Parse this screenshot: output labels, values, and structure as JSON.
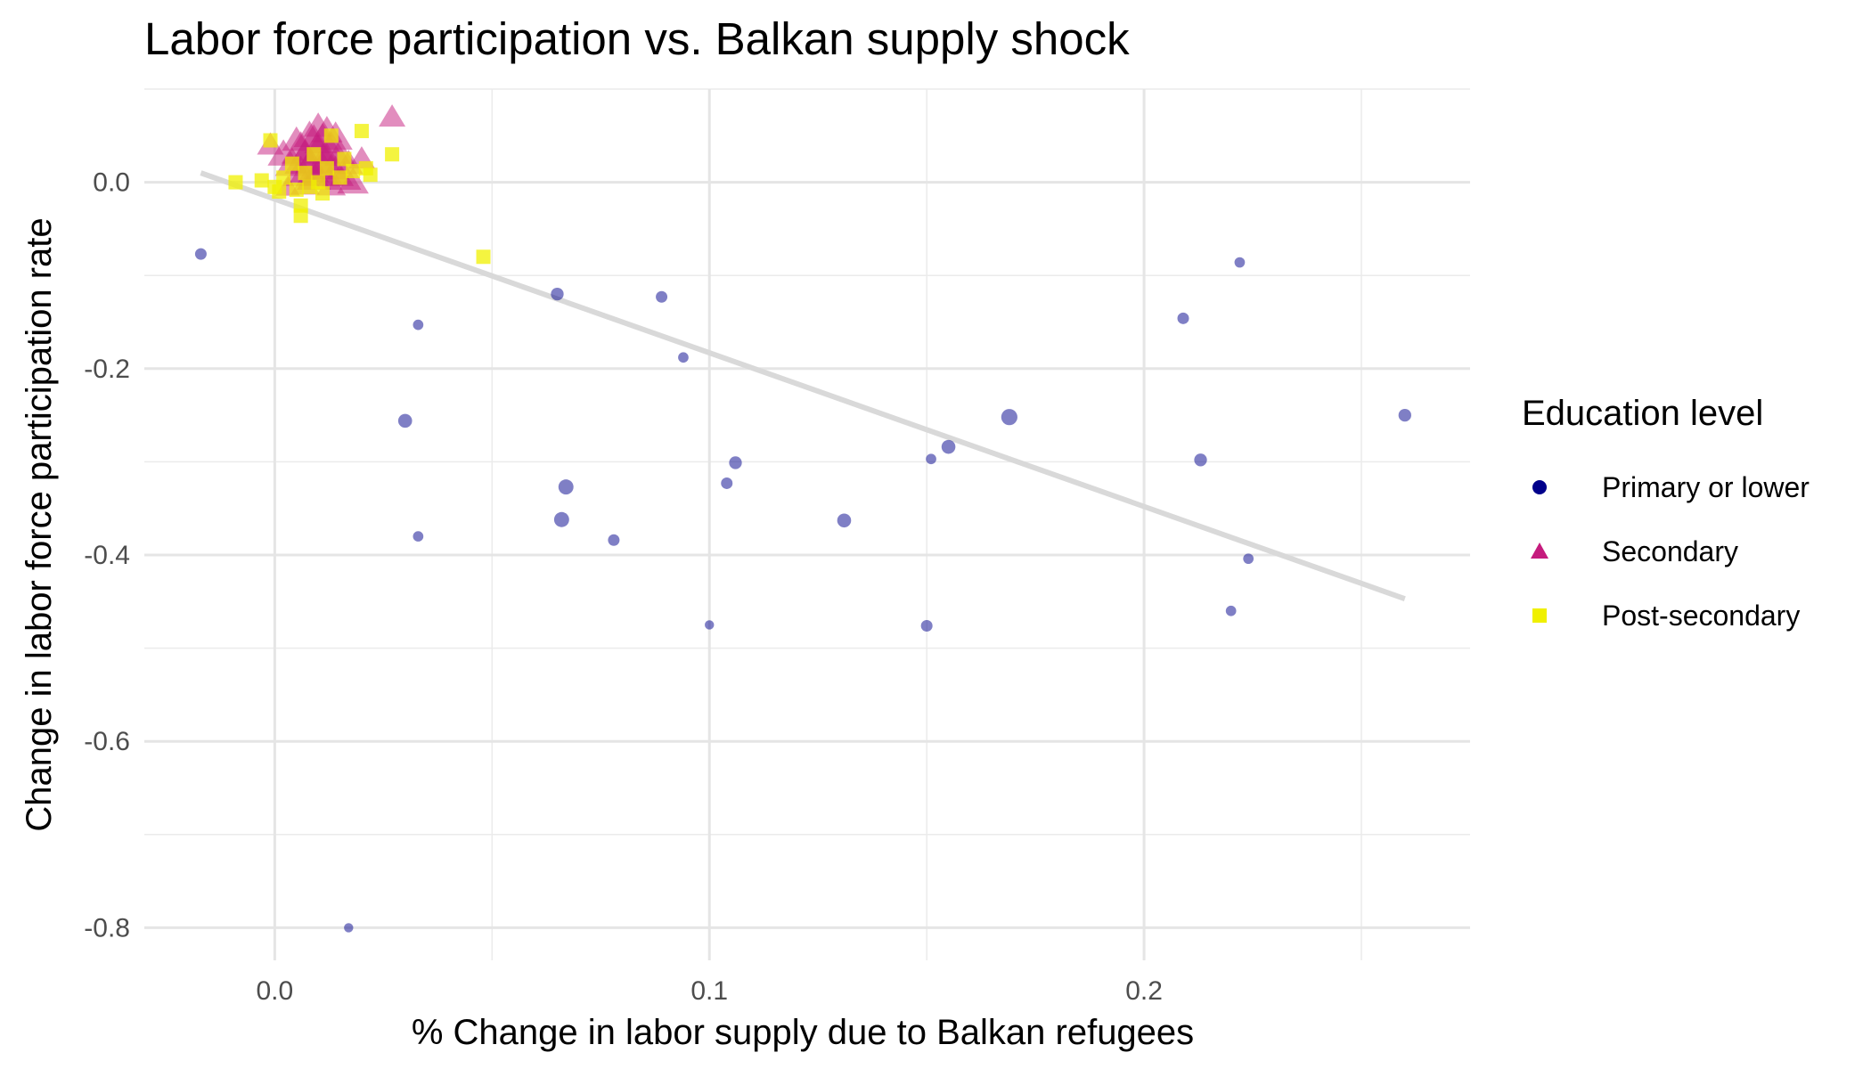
{
  "chart_data": {
    "type": "scatter",
    "title": "Labor force participation vs. Balkan supply shock",
    "xlabel": "% Change in labor supply due to Balkan refugees",
    "ylabel": "Change in labor force participation rate",
    "xlim": [
      -0.03,
      0.275
    ],
    "ylim": [
      -0.835,
      0.1
    ],
    "x_ticks": [
      0.0,
      0.1,
      0.2
    ],
    "x_tick_labels": [
      "0.0",
      "0.1",
      "0.2"
    ],
    "y_ticks": [
      0.0,
      -0.2,
      -0.4,
      -0.6,
      -0.8
    ],
    "y_tick_labels": [
      "0.0",
      "-0.2",
      "-0.4",
      "-0.6",
      "-0.8"
    ],
    "grid": true,
    "legend_title": "Education level",
    "legend_position": "right",
    "series": [
      {
        "name": "Primary or lower",
        "marker": "circle",
        "color": "#00008b",
        "points": [
          {
            "x": -0.017,
            "y": -0.077,
            "s": 1.0
          },
          {
            "x": 0.017,
            "y": -0.8,
            "s": 0.8
          },
          {
            "x": 0.03,
            "y": -0.256,
            "s": 1.2
          },
          {
            "x": 0.033,
            "y": -0.153,
            "s": 0.9
          },
          {
            "x": 0.033,
            "y": -0.38,
            "s": 0.9
          },
          {
            "x": 0.065,
            "y": -0.12,
            "s": 1.1
          },
          {
            "x": 0.066,
            "y": -0.362,
            "s": 1.3
          },
          {
            "x": 0.067,
            "y": -0.327,
            "s": 1.3
          },
          {
            "x": 0.078,
            "y": -0.384,
            "s": 1.0
          },
          {
            "x": 0.089,
            "y": -0.123,
            "s": 1.0
          },
          {
            "x": 0.094,
            "y": -0.188,
            "s": 0.9
          },
          {
            "x": 0.1,
            "y": -0.475,
            "s": 0.8
          },
          {
            "x": 0.104,
            "y": -0.323,
            "s": 1.0
          },
          {
            "x": 0.106,
            "y": -0.301,
            "s": 1.1
          },
          {
            "x": 0.131,
            "y": -0.363,
            "s": 1.2
          },
          {
            "x": 0.15,
            "y": -0.476,
            "s": 1.0
          },
          {
            "x": 0.151,
            "y": -0.297,
            "s": 0.9
          },
          {
            "x": 0.155,
            "y": -0.284,
            "s": 1.2
          },
          {
            "x": 0.169,
            "y": -0.252,
            "s": 1.4
          },
          {
            "x": 0.209,
            "y": -0.146,
            "s": 1.0
          },
          {
            "x": 0.213,
            "y": -0.298,
            "s": 1.1
          },
          {
            "x": 0.22,
            "y": -0.46,
            "s": 0.9
          },
          {
            "x": 0.222,
            "y": -0.086,
            "s": 0.9
          },
          {
            "x": 0.224,
            "y": -0.404,
            "s": 0.9
          },
          {
            "x": 0.26,
            "y": -0.25,
            "s": 1.1
          }
        ]
      },
      {
        "name": "Secondary",
        "marker": "triangle",
        "color": "#c51b7d",
        "points": [
          {
            "x": -0.001,
            "y": 0.04,
            "s": 1.1
          },
          {
            "x": 0.002,
            "y": 0.03,
            "s": 1.3
          },
          {
            "x": 0.003,
            "y": -0.005,
            "s": 1.0
          },
          {
            "x": 0.004,
            "y": 0.02,
            "s": 1.4
          },
          {
            "x": 0.005,
            "y": 0.045,
            "s": 1.2
          },
          {
            "x": 0.006,
            "y": 0.01,
            "s": 1.5
          },
          {
            "x": 0.006,
            "y": 0.035,
            "s": 1.6
          },
          {
            "x": 0.007,
            "y": -0.002,
            "s": 1.2
          },
          {
            "x": 0.007,
            "y": 0.025,
            "s": 1.7
          },
          {
            "x": 0.008,
            "y": 0.05,
            "s": 1.3
          },
          {
            "x": 0.008,
            "y": 0.015,
            "s": 1.6
          },
          {
            "x": 0.009,
            "y": 0.04,
            "s": 1.8
          },
          {
            "x": 0.009,
            "y": 0.005,
            "s": 1.4
          },
          {
            "x": 0.01,
            "y": 0.06,
            "s": 1.2
          },
          {
            "x": 0.01,
            "y": 0.028,
            "s": 1.9
          },
          {
            "x": 0.011,
            "y": 0.045,
            "s": 1.5
          },
          {
            "x": 0.011,
            "y": 0.012,
            "s": 1.7
          },
          {
            "x": 0.012,
            "y": 0.055,
            "s": 1.3
          },
          {
            "x": 0.012,
            "y": 0.02,
            "s": 1.8
          },
          {
            "x": 0.013,
            "y": 0.035,
            "s": 1.6
          },
          {
            "x": 0.013,
            "y": -0.003,
            "s": 1.2
          },
          {
            "x": 0.014,
            "y": 0.048,
            "s": 1.4
          },
          {
            "x": 0.014,
            "y": 0.01,
            "s": 1.5
          },
          {
            "x": 0.015,
            "y": 0.03,
            "s": 1.3
          },
          {
            "x": 0.016,
            "y": 0.005,
            "s": 1.4
          },
          {
            "x": 0.017,
            "y": 0.02,
            "s": 1.2
          },
          {
            "x": 0.018,
            "y": 0.0,
            "s": 1.3
          },
          {
            "x": 0.02,
            "y": 0.025,
            "s": 1.1
          },
          {
            "x": 0.027,
            "y": 0.07,
            "s": 1.1
          }
        ]
      },
      {
        "name": "Post-secondary",
        "marker": "square",
        "color": "#f0f000",
        "points": [
          {
            "x": -0.009,
            "y": 0.0,
            "s": 1.0
          },
          {
            "x": -0.003,
            "y": 0.002,
            "s": 1.0
          },
          {
            "x": -0.001,
            "y": 0.045,
            "s": 1.0
          },
          {
            "x": 0.0,
            "y": -0.005,
            "s": 1.0
          },
          {
            "x": 0.001,
            "y": -0.01,
            "s": 1.0
          },
          {
            "x": 0.002,
            "y": 0.005,
            "s": 1.0
          },
          {
            "x": 0.004,
            "y": 0.02,
            "s": 1.0
          },
          {
            "x": 0.005,
            "y": -0.008,
            "s": 1.0
          },
          {
            "x": 0.006,
            "y": -0.025,
            "s": 1.0
          },
          {
            "x": 0.006,
            "y": -0.036,
            "s": 1.0
          },
          {
            "x": 0.007,
            "y": 0.01,
            "s": 1.0
          },
          {
            "x": 0.008,
            "y": -0.005,
            "s": 1.0
          },
          {
            "x": 0.009,
            "y": 0.03,
            "s": 1.0
          },
          {
            "x": 0.01,
            "y": 0.0,
            "s": 1.0
          },
          {
            "x": 0.011,
            "y": -0.012,
            "s": 1.0
          },
          {
            "x": 0.012,
            "y": 0.015,
            "s": 1.0
          },
          {
            "x": 0.013,
            "y": 0.05,
            "s": 1.0
          },
          {
            "x": 0.015,
            "y": 0.005,
            "s": 1.0
          },
          {
            "x": 0.016,
            "y": 0.025,
            "s": 1.0
          },
          {
            "x": 0.018,
            "y": 0.012,
            "s": 1.0
          },
          {
            "x": 0.02,
            "y": 0.055,
            "s": 1.0
          },
          {
            "x": 0.021,
            "y": 0.015,
            "s": 1.0
          },
          {
            "x": 0.022,
            "y": 0.008,
            "s": 1.0
          },
          {
            "x": 0.027,
            "y": 0.03,
            "s": 1.0
          },
          {
            "x": 0.048,
            "y": -0.08,
            "s": 1.0
          }
        ]
      }
    ],
    "trend_line": {
      "color": "#d9d9d9",
      "x": [
        -0.017,
        0.26
      ],
      "y": [
        0.01,
        -0.447
      ]
    }
  }
}
